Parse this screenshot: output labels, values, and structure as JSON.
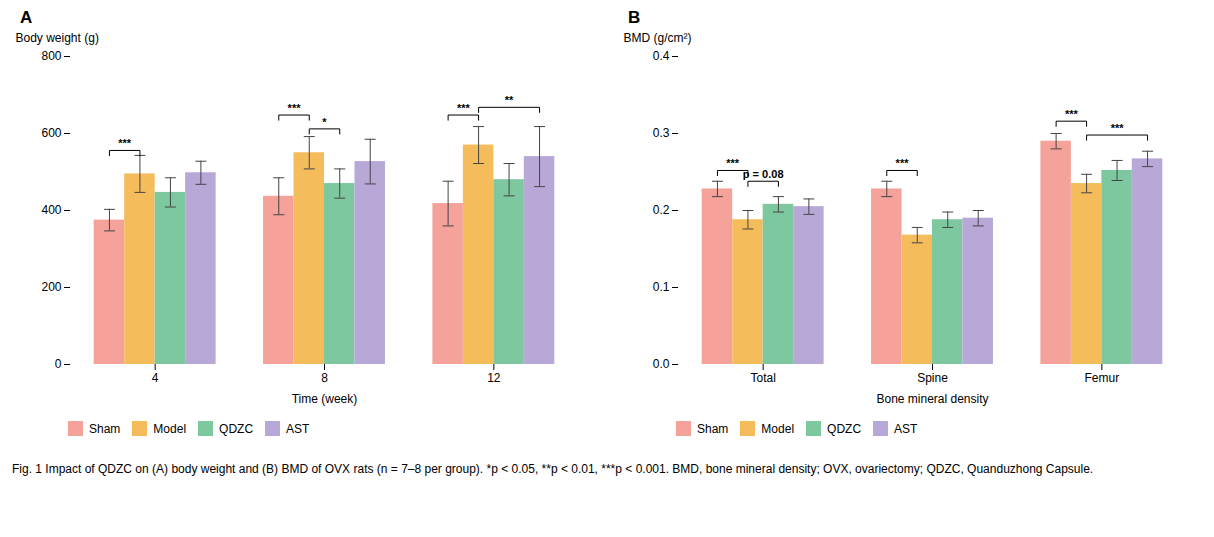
{
  "chart_data": [
    {
      "type": "bar",
      "title": "A",
      "xlabel": "Time (week)",
      "ylabel": "Body weight (g)",
      "categories": [
        "4",
        "8",
        "12"
      ],
      "series": [
        {
          "name": "Sham",
          "color": "#F4A29A",
          "values": [
            375,
            437,
            418
          ],
          "errors": [
            28,
            48,
            58
          ]
        },
        {
          "name": "Model",
          "color": "#F5BC5C",
          "values": [
            495,
            550,
            570
          ],
          "errors": [
            48,
            42,
            48
          ]
        },
        {
          "name": "QDZC",
          "color": "#7EC8A0",
          "values": [
            447,
            470,
            480
          ],
          "errors": [
            38,
            38,
            42
          ]
        },
        {
          "name": "AST",
          "color": "#B8A8D8",
          "values": [
            498,
            527,
            540
          ],
          "errors": [
            30,
            58,
            78
          ]
        }
      ],
      "ylim": [
        0,
        800
      ],
      "yticks": [
        0,
        200,
        400,
        600,
        800
      ],
      "grid": false,
      "legend": "bottom",
      "annotations": [
        {
          "text": "***",
          "category": "4",
          "from": "Sham",
          "to": "Model",
          "y": 556
        },
        {
          "text": "***",
          "category": "8",
          "from": "Sham",
          "to": "Model",
          "y": 648
        },
        {
          "text": "*",
          "category": "8",
          "from": "Model",
          "to": "QDZC",
          "y": 612
        },
        {
          "text": "***",
          "category": "12",
          "from": "Sham",
          "to": "Model",
          "y": 648
        },
        {
          "text": "**",
          "category": "12",
          "from": "Model",
          "to": "AST",
          "y": 668
        }
      ]
    },
    {
      "type": "bar",
      "title": "B",
      "xlabel": "Bone mineral density",
      "ylabel": "BMD (g/cm²)",
      "categories": [
        "Total",
        "Spine",
        "Femur"
      ],
      "series": [
        {
          "name": "Sham",
          "color": "#F4A29A",
          "values": [
            0.228,
            0.228,
            0.29
          ],
          "errors": [
            0.01,
            0.01,
            0.01
          ]
        },
        {
          "name": "Model",
          "color": "#F5BC5C",
          "values": [
            0.188,
            0.168,
            0.235
          ],
          "errors": [
            0.012,
            0.01,
            0.012
          ]
        },
        {
          "name": "QDZC",
          "color": "#7EC8A0",
          "values": [
            0.208,
            0.188,
            0.252
          ],
          "errors": [
            0.01,
            0.01,
            0.013
          ]
        },
        {
          "name": "AST",
          "color": "#B8A8D8",
          "values": [
            0.205,
            0.19,
            0.267
          ],
          "errors": [
            0.01,
            0.01,
            0.01
          ]
        }
      ],
      "ylim": [
        0,
        0.4
      ],
      "yticks": [
        {
          "value": 0,
          "label": "0.0"
        },
        0.1,
        0.2,
        0.3,
        0.4
      ],
      "grid": false,
      "legend": "bottom",
      "annotations": [
        {
          "text": "***",
          "category": "Total",
          "from": "Sham",
          "to": "Model",
          "y": 0.252
        },
        {
          "text": "p = 0.08",
          "category": "Total",
          "from": "Model",
          "to": "QDZC",
          "y": 0.238
        },
        {
          "text": "***",
          "category": "Spine",
          "from": "Sham",
          "to": "Model",
          "y": 0.252
        },
        {
          "text": "***",
          "category": "Femur",
          "from": "Sham",
          "to": "Model",
          "y": 0.316
        },
        {
          "text": "***",
          "category": "Femur",
          "from": "Model",
          "to": "AST",
          "y": 0.298
        }
      ]
    }
  ],
  "caption": "Fig. 1  Impact of QDZC on (A) body weight and (B) BMD of OVX rats (n = 7–8 per group). *p < 0.05, **p < 0.01, ***p < 0.001. BMD, bone mineral density; OVX, ovariectomy; QDZC, Quanduzhong Capsule."
}
